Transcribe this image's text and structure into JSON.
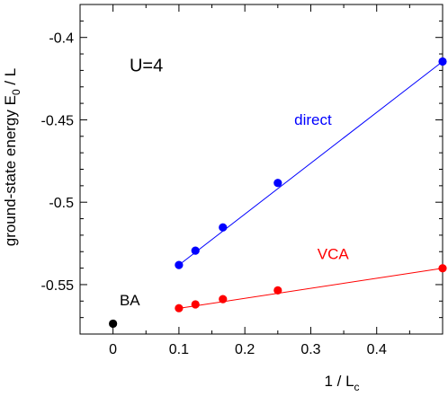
{
  "chart_data": {
    "type": "scatter",
    "xlabel": "1 / L",
    "xlabel_sub": "c",
    "ylabel": "ground-state energy  E",
    "ylabel_sub": "0",
    "ylabel_suffix": " / L",
    "xlim": [
      -0.05,
      0.5
    ],
    "ylim": [
      -0.58,
      -0.38
    ],
    "xticks": [
      0,
      0.1,
      0.2,
      0.3,
      0.4
    ],
    "xtick_labels": [
      "0",
      "0.1",
      "0.2",
      "0.3",
      "0.4"
    ],
    "yticks": [
      -0.4,
      -0.45,
      -0.5,
      -0.55
    ],
    "ytick_labels": [
      "-0.4",
      "-0.45",
      "-0.5",
      "-0.55"
    ],
    "grid": false,
    "annotations": [
      {
        "text": "U=4",
        "x": 0.025,
        "y": -0.4205,
        "color": "#000000"
      }
    ],
    "series": [
      {
        "name": "direct",
        "color": "#0000ff",
        "label_pos": {
          "x": 0.275,
          "y": -0.453
        },
        "x": [
          0.1,
          0.125,
          0.1667,
          0.25,
          0.5
        ],
        "y": [
          -0.5381,
          -0.5294,
          -0.5153,
          -0.4883,
          -0.4146
        ],
        "fit": [
          [
            0.1,
            -0.5381
          ],
          [
            0.5,
            -0.4146
          ]
        ]
      },
      {
        "name": "VCA",
        "color": "#ff0000",
        "label_pos": {
          "x": 0.31,
          "y": -0.5345
        },
        "x": [
          0.1,
          0.125,
          0.1667,
          0.25,
          0.5
        ],
        "y": [
          -0.5643,
          -0.562,
          -0.5588,
          -0.5535,
          -0.5401
        ],
        "fit": [
          [
            0.1,
            -0.5644
          ],
          [
            0.5,
            -0.5401
          ]
        ]
      },
      {
        "name": "BA",
        "color": "#000000",
        "label_pos": {
          "x": 0.01,
          "y": -0.5625
        },
        "x": [
          0
        ],
        "y": [
          -0.5737
        ]
      }
    ]
  }
}
